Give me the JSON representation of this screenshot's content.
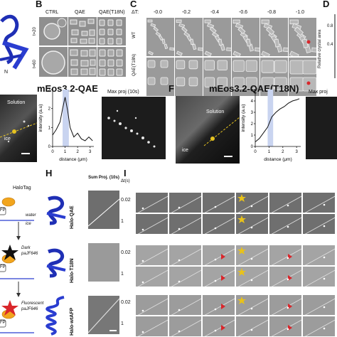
{
  "panels": {
    "B": "B",
    "C": "C",
    "D": "D",
    "F": "F",
    "H": "H",
    "I": "I"
  },
  "panelB": {
    "columns": [
      "CTRL",
      "QAE",
      "QAE(T18N)"
    ],
    "rows": [
      "t=20",
      "t=60"
    ]
  },
  "panelA_fragment": {
    "label": "N"
  },
  "panelC": {
    "delta_label": "ΔT:",
    "temps": [
      "-0.0",
      "-0.2",
      "-0.4",
      "-0.6",
      "-0.8",
      "-1.0"
    ],
    "rows": [
      "WT",
      "QAE(T18N)"
    ]
  },
  "panelD": {
    "ylabel": "Relative crystal area",
    "yticks": [
      "0.8",
      "0.4"
    ]
  },
  "panelE": {
    "title": "mEos3.2-QAE",
    "solution_label": "Solution",
    "ice_label": "ice",
    "maxproj_label": "Max proj (10s)"
  },
  "panelF": {
    "title": "mEos3.2-QAE(T18N)",
    "solution_label": "Solution",
    "ice_label": "ice",
    "maxproj_label": "Max proj"
  },
  "chart_data": [
    {
      "type": "line",
      "title": "",
      "xlabel": "distance (μm)",
      "ylabel": "intensity (a.u)",
      "xlim": [
        0,
        3.3
      ],
      "ylim": [
        0,
        3
      ],
      "xticks": [
        "0",
        "1",
        "2",
        "3"
      ],
      "yticks": [
        "0",
        "1",
        "2",
        "3"
      ],
      "highlight_x": [
        0.8,
        1.3
      ],
      "series": [
        {
          "x": [
            0,
            0.3,
            0.6,
            0.8,
            1.0,
            1.2,
            1.4,
            1.7,
            2.0,
            2.3,
            2.6,
            2.9,
            3.2
          ],
          "y": [
            0.6,
            0.9,
            1.3,
            2.0,
            2.6,
            1.9,
            1.0,
            0.5,
            0.7,
            0.4,
            0.3,
            0.5,
            0.3
          ]
        }
      ]
    },
    {
      "type": "line",
      "title": "",
      "xlabel": "distance (μm)",
      "ylabel": "intensity (a.u)",
      "xlim": [
        0,
        3.3
      ],
      "ylim": [
        0,
        5
      ],
      "xticks": [
        "0",
        "1",
        "2",
        "3"
      ],
      "yticks": [
        "0",
        "1",
        "2",
        "3",
        "4",
        "5"
      ],
      "highlight_x": [
        0.9,
        1.3
      ],
      "series": [
        {
          "x": [
            0,
            0.3,
            0.6,
            0.9,
            1.2,
            1.5,
            1.8,
            2.1,
            2.4,
            2.7,
            3.0,
            3.2
          ],
          "y": [
            0.4,
            0.7,
            1.2,
            1.7,
            2.6,
            3.0,
            3.3,
            3.5,
            3.8,
            4.0,
            4.1,
            4.2
          ]
        }
      ]
    }
  ],
  "panelG": {
    "halotag": "HaloTag",
    "fp": "FP",
    "water": "water",
    "ice": "ice",
    "dark": "Dark",
    "dye1": "paJF646",
    "fluorescent": "Fluorescent",
    "dye2": "paJF646"
  },
  "panelH": {
    "sumproj_label": "Sum Proj. (10s)",
    "constructs": [
      "Halo-QAE",
      "Halo-T18N",
      "Halo-wtAFP"
    ]
  },
  "panelI": {
    "dt_label": "Δt(s)",
    "dt_values": [
      "0.02",
      "1",
      "0.02",
      "1",
      "0.02",
      "1"
    ]
  },
  "colors": {
    "protein_blue": "#1f2fb5",
    "highlight": "#c9d4f0",
    "star": "#e8c21a",
    "marker": "#d9262b",
    "yellow_line": "#e6c320"
  }
}
